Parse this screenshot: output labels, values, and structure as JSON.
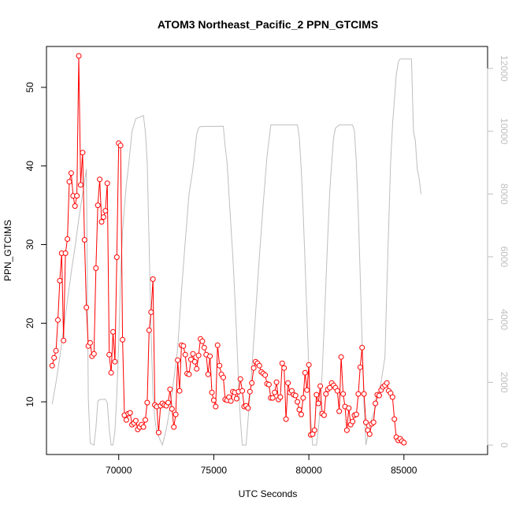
{
  "chart_data": {
    "type": "line",
    "title": "ATOM3 Northeast_Pacific_2 PPN_GTCIMS",
    "xlabel": "UTC Seconds",
    "ylabel": "PPN_GTCIMS",
    "xlim": [
      66200,
      89400
    ],
    "ylim": [
      3.3,
      55.2
    ],
    "y2lim": [
      -300,
      12700
    ],
    "x_ticks": [
      70000,
      75000,
      80000,
      85000
    ],
    "y_ticks": [
      10,
      20,
      30,
      40,
      50
    ],
    "y2_ticks": [
      0,
      2000,
      4000,
      6000,
      8000,
      10000,
      12000
    ],
    "colors": {
      "primary": "#ff0000",
      "secondary": "#bebebe",
      "axis": "#000000"
    },
    "grid": false,
    "series": [
      {
        "axis": "left",
        "style": "line+points",
        "points": [
          [
            66500,
            14.6
          ],
          [
            66600,
            15.6
          ],
          [
            66700,
            16.5
          ],
          [
            66800,
            20.4
          ],
          [
            66900,
            25.4
          ],
          [
            67000,
            28.9
          ],
          [
            67100,
            17.8
          ],
          [
            67200,
            28.9
          ],
          [
            67300,
            30.7
          ],
          [
            67400,
            38.0
          ],
          [
            67500,
            39.1
          ],
          [
            67600,
            36.2
          ],
          [
            67700,
            34.9
          ],
          [
            67800,
            36.2
          ],
          [
            67900,
            54.0
          ],
          [
            68000,
            37.6
          ],
          [
            68100,
            41.7
          ],
          [
            68200,
            30.6
          ],
          [
            68300,
            22.0
          ],
          [
            68400,
            17.1
          ],
          [
            68500,
            17.5
          ],
          [
            68600,
            15.8
          ],
          [
            68700,
            16.1
          ],
          [
            68800,
            27.0
          ],
          [
            68900,
            35.0
          ],
          [
            69000,
            38.3
          ],
          [
            69100,
            32.9
          ],
          [
            69200,
            33.5
          ],
          [
            69300,
            34.3
          ],
          [
            69400,
            37.8
          ],
          [
            69500,
            16.0
          ],
          [
            69600,
            13.7
          ],
          [
            69700,
            18.9
          ],
          [
            69800,
            15.1
          ],
          [
            69900,
            28.4
          ],
          [
            70000,
            42.9
          ],
          [
            70100,
            42.6
          ],
          [
            70200,
            17.9
          ],
          [
            70300,
            8.3
          ],
          [
            70400,
            7.7
          ],
          [
            70500,
            8.5
          ],
          [
            70600,
            8.6
          ],
          [
            70700,
            7.1
          ],
          [
            70800,
            7.3
          ],
          [
            70900,
            7.6
          ],
          [
            71000,
            6.5
          ],
          [
            71100,
            6.8
          ],
          [
            71200,
            7.1
          ],
          [
            71300,
            6.8
          ],
          [
            71400,
            7.7
          ],
          [
            71500,
            9.9
          ],
          [
            71600,
            19.1
          ],
          [
            71700,
            21.4
          ],
          [
            71800,
            25.6
          ],
          [
            71900,
            9.6
          ],
          [
            72000,
            9.4
          ],
          [
            72100,
            6.1
          ],
          [
            72200,
            9.5
          ],
          [
            72300,
            9.8
          ],
          [
            72400,
            9.6
          ],
          [
            72500,
            9.5
          ],
          [
            72600,
            9.9
          ],
          [
            72700,
            11.6
          ],
          [
            72800,
            9.1
          ],
          [
            72900,
            6.8
          ],
          [
            73000,
            8.4
          ],
          [
            73100,
            15.3
          ],
          [
            73200,
            11.4
          ],
          [
            73300,
            17.2
          ],
          [
            73400,
            17.1
          ],
          [
            73500,
            16.0
          ],
          [
            73600,
            13.6
          ],
          [
            73700,
            13.5
          ],
          [
            73800,
            15.4
          ],
          [
            73900,
            16.1
          ],
          [
            74000,
            15.1
          ],
          [
            74100,
            14.2
          ],
          [
            74200,
            15.9
          ],
          [
            74300,
            18.0
          ],
          [
            74400,
            17.7
          ],
          [
            74500,
            16.9
          ],
          [
            74600,
            16.0
          ],
          [
            74700,
            13.5
          ],
          [
            74800,
            15.8
          ],
          [
            74900,
            11.2
          ],
          [
            75000,
            10.2
          ],
          [
            75100,
            9.4
          ],
          [
            75200,
            17.2
          ],
          [
            75300,
            14.6
          ],
          [
            75400,
            13.5
          ],
          [
            75500,
            13.1
          ],
          [
            75600,
            10.3
          ],
          [
            75700,
            10.2
          ],
          [
            75800,
            10.6
          ],
          [
            75900,
            10.1
          ],
          [
            76000,
            11.3
          ],
          [
            76100,
            11.2
          ],
          [
            76200,
            10.4
          ],
          [
            76300,
            11.3
          ],
          [
            76400,
            12.9
          ],
          [
            76500,
            11.4
          ],
          [
            76600,
            9.4
          ],
          [
            76700,
            9.5
          ],
          [
            76800,
            9.2
          ],
          [
            76900,
            11.3
          ],
          [
            77000,
            12.4
          ],
          [
            77100,
            14.3
          ],
          [
            77200,
            15.1
          ],
          [
            77300,
            14.9
          ],
          [
            77400,
            14.6
          ],
          [
            77500,
            13.8
          ],
          [
            77600,
            13.6
          ],
          [
            77700,
            13.4
          ],
          [
            77800,
            12.3
          ],
          [
            77900,
            12.2
          ],
          [
            78000,
            10.5
          ],
          [
            78100,
            10.5
          ],
          [
            78200,
            11.2
          ],
          [
            78300,
            12.5
          ],
          [
            78400,
            10.3
          ],
          [
            78500,
            10.6
          ],
          [
            78600,
            14.9
          ],
          [
            78700,
            14.3
          ],
          [
            78800,
            7.8
          ],
          [
            78900,
            12.4
          ],
          [
            79000,
            11.2
          ],
          [
            79100,
            11.4
          ],
          [
            79200,
            10.9
          ],
          [
            79300,
            10.8
          ],
          [
            79400,
            10.0
          ],
          [
            79500,
            9.0
          ],
          [
            79600,
            8.4
          ],
          [
            79700,
            10.5
          ],
          [
            79800,
            13.7
          ],
          [
            79900,
            11.5
          ],
          [
            80000,
            14.7
          ],
          [
            80100,
            5.8
          ],
          [
            80200,
            5.9
          ],
          [
            80300,
            6.4
          ],
          [
            80400,
            10.9
          ],
          [
            80500,
            9.8
          ],
          [
            80600,
            12.0
          ],
          [
            80700,
            8.5
          ],
          [
            80800,
            8.3
          ],
          [
            80900,
            11.0
          ],
          [
            81000,
            11.6
          ],
          [
            81100,
            11.8
          ],
          [
            81200,
            12.4
          ],
          [
            81300,
            12.1
          ],
          [
            81400,
            11.8
          ],
          [
            81500,
            11.4
          ],
          [
            81600,
            8.8
          ],
          [
            81700,
            15.7
          ],
          [
            81800,
            11.0
          ],
          [
            81900,
            9.4
          ],
          [
            82000,
            6.4
          ],
          [
            82100,
            9.2
          ],
          [
            82200,
            7.1
          ],
          [
            82300,
            7.5
          ],
          [
            82400,
            8.3
          ],
          [
            82500,
            8.4
          ],
          [
            82600,
            11.0
          ],
          [
            82700,
            14.4
          ],
          [
            82800,
            16.9
          ],
          [
            82900,
            11.0
          ],
          [
            83000,
            7.4
          ],
          [
            83100,
            6.4
          ],
          [
            83200,
            5.9
          ],
          [
            83300,
            7.2
          ],
          [
            83400,
            7.4
          ],
          [
            83500,
            9.8
          ],
          [
            83600,
            10.9
          ],
          [
            83700,
            10.8
          ],
          [
            83800,
            11.5
          ],
          [
            83900,
            11.9
          ],
          [
            84000,
            12.1
          ],
          [
            84100,
            12.4
          ],
          [
            84200,
            11.4
          ],
          [
            84300,
            11.1
          ],
          [
            84400,
            10.6
          ],
          [
            84500,
            7.8
          ],
          [
            84600,
            5.5
          ],
          [
            84700,
            5.1
          ],
          [
            84800,
            5.3
          ],
          [
            84900,
            5.0
          ],
          [
            85000,
            4.8
          ]
        ]
      },
      {
        "axis": "right",
        "style": "line",
        "points": [
          [
            66500,
            1300
          ],
          [
            66700,
            2000
          ],
          [
            66900,
            2800
          ],
          [
            67100,
            3700
          ],
          [
            67300,
            4600
          ],
          [
            67500,
            5500
          ],
          [
            67700,
            6300
          ],
          [
            67900,
            7200
          ],
          [
            68100,
            8000
          ],
          [
            68300,
            8800
          ],
          [
            68400,
            1500
          ],
          [
            68500,
            60
          ],
          [
            68700,
            0
          ],
          [
            68800,
            550
          ],
          [
            68900,
            1400
          ],
          [
            69000,
            1450
          ],
          [
            69300,
            1460
          ],
          [
            69400,
            1350
          ],
          [
            69500,
            500
          ],
          [
            69600,
            0
          ],
          [
            69700,
            0
          ],
          [
            69800,
            450
          ],
          [
            69900,
            1600
          ],
          [
            70000,
            3200
          ],
          [
            70100,
            5400
          ],
          [
            70200,
            6800
          ],
          [
            70300,
            7600
          ],
          [
            70400,
            8300
          ],
          [
            70500,
            8800
          ],
          [
            70600,
            9400
          ],
          [
            70700,
            10000
          ],
          [
            70800,
            10200
          ],
          [
            70900,
            10400
          ],
          [
            71300,
            10500
          ],
          [
            71400,
            10000
          ],
          [
            71500,
            9000
          ],
          [
            71600,
            6400
          ],
          [
            71700,
            3600
          ],
          [
            71800,
            1600
          ],
          [
            71900,
            850
          ],
          [
            72000,
            400
          ],
          [
            72300,
            0
          ],
          [
            72500,
            500
          ],
          [
            72700,
            1200
          ],
          [
            72900,
            2100
          ],
          [
            73100,
            3100
          ],
          [
            73300,
            4900
          ],
          [
            73500,
            6500
          ],
          [
            73700,
            8000
          ],
          [
            73900,
            8800
          ],
          [
            74100,
            9900
          ],
          [
            74200,
            10100
          ],
          [
            74300,
            10150
          ],
          [
            75500,
            10160
          ],
          [
            75600,
            9500
          ],
          [
            75700,
            9000
          ],
          [
            75800,
            8000
          ],
          [
            75900,
            7000
          ],
          [
            76000,
            6000
          ],
          [
            76100,
            4800
          ],
          [
            76200,
            3500
          ],
          [
            76300,
            2000
          ],
          [
            76400,
            800
          ],
          [
            76500,
            0
          ],
          [
            76700,
            0
          ],
          [
            76800,
            800
          ],
          [
            77000,
            2400
          ],
          [
            77200,
            4200
          ],
          [
            77400,
            6000
          ],
          [
            77600,
            7700
          ],
          [
            77800,
            9200
          ],
          [
            78000,
            10200
          ],
          [
            79400,
            10200
          ],
          [
            79500,
            9800
          ],
          [
            79600,
            8800
          ],
          [
            79700,
            7400
          ],
          [
            79800,
            5800
          ],
          [
            79900,
            4100
          ],
          [
            80000,
            2400
          ],
          [
            80100,
            800
          ],
          [
            80200,
            0
          ],
          [
            80400,
            0
          ],
          [
            80500,
            500
          ],
          [
            80600,
            1200
          ],
          [
            80700,
            2300
          ],
          [
            80800,
            3700
          ],
          [
            80900,
            5200
          ],
          [
            81000,
            6700
          ],
          [
            81100,
            8100
          ],
          [
            81200,
            9000
          ],
          [
            81300,
            9800
          ],
          [
            81400,
            10100
          ],
          [
            81600,
            10200
          ],
          [
            82300,
            10200
          ],
          [
            82400,
            10000
          ],
          [
            82500,
            9000
          ],
          [
            82600,
            7400
          ],
          [
            82700,
            5400
          ],
          [
            82800,
            3300
          ],
          [
            82900,
            1300
          ],
          [
            83000,
            0
          ],
          [
            83200,
            600
          ],
          [
            83500,
            1200
          ],
          [
            83800,
            2000
          ],
          [
            84000,
            2800
          ],
          [
            84100,
            5000
          ],
          [
            84200,
            7000
          ],
          [
            84300,
            9000
          ],
          [
            84400,
            10200
          ],
          [
            84500,
            11000
          ],
          [
            84600,
            11800
          ],
          [
            84700,
            12200
          ],
          [
            84800,
            12300
          ],
          [
            85400,
            12300
          ],
          [
            85500,
            10000
          ],
          [
            85600,
            9700
          ],
          [
            85700,
            8800
          ],
          [
            85800,
            8500
          ],
          [
            85900,
            8000
          ]
        ]
      }
    ]
  }
}
